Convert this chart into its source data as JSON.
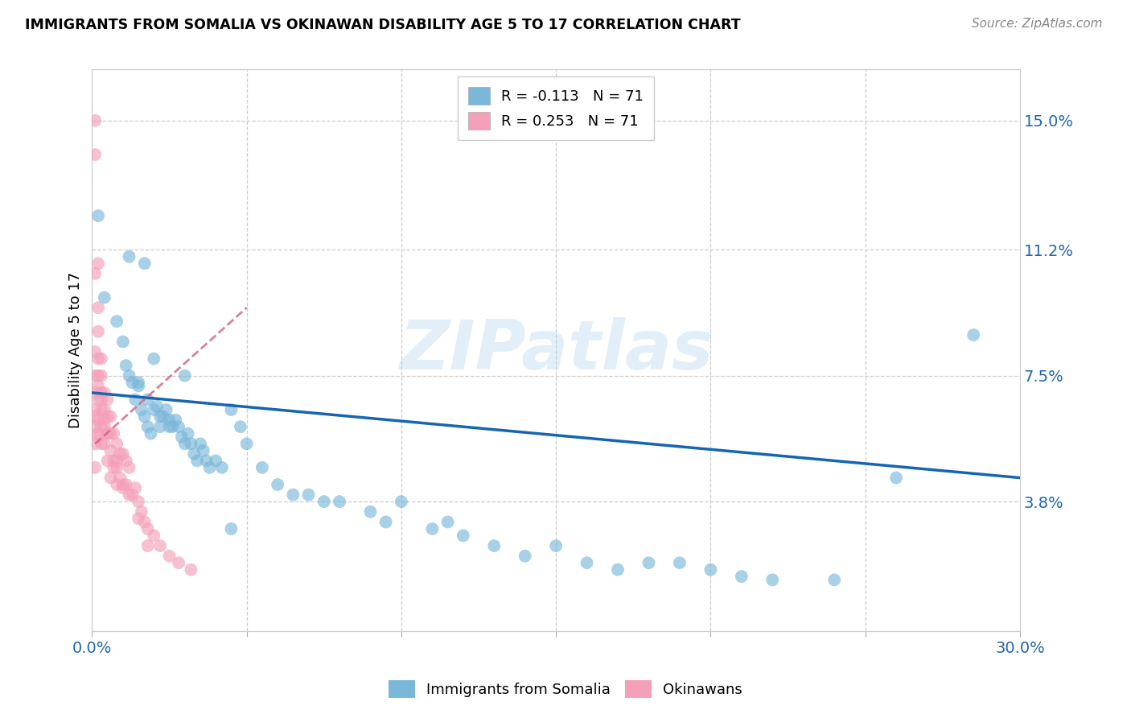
{
  "title": "IMMIGRANTS FROM SOMALIA VS OKINAWAN DISABILITY AGE 5 TO 17 CORRELATION CHART",
  "source": "Source: ZipAtlas.com",
  "ylabel": "Disability Age 5 to 17",
  "x_min": 0.0,
  "x_max": 0.3,
  "y_min": 0.0,
  "y_max": 0.165,
  "y_ticks_right": [
    0.038,
    0.075,
    0.112,
    0.15
  ],
  "y_tick_labels_right": [
    "3.8%",
    "7.5%",
    "11.2%",
    "15.0%"
  ],
  "blue_color": "#7ab8d9",
  "pink_color": "#f4a0b8",
  "trend_blue_color": "#1565b0",
  "trend_pink_color": "#d4607a",
  "legend_R1": "R = -0.113",
  "legend_N1": "N = 71",
  "legend_R2": "R = 0.253",
  "legend_N2": "N = 71",
  "label1": "Immigrants from Somalia",
  "label2": "Okinawans",
  "watermark": "ZIPatlas",
  "blue_trend_x": [
    0.0,
    0.3
  ],
  "blue_trend_y": [
    0.07,
    0.045
  ],
  "pink_trend_x": [
    0.001,
    0.05
  ],
  "pink_trend_y": [
    0.055,
    0.095
  ],
  "blue_scatter_x": [
    0.002,
    0.004,
    0.008,
    0.01,
    0.011,
    0.012,
    0.013,
    0.014,
    0.015,
    0.016,
    0.017,
    0.018,
    0.019,
    0.02,
    0.021,
    0.022,
    0.023,
    0.024,
    0.025,
    0.026,
    0.027,
    0.028,
    0.029,
    0.03,
    0.031,
    0.032,
    0.033,
    0.034,
    0.035,
    0.036,
    0.037,
    0.038,
    0.04,
    0.042,
    0.045,
    0.048,
    0.05,
    0.055,
    0.06,
    0.065,
    0.07,
    0.075,
    0.08,
    0.09,
    0.095,
    0.1,
    0.11,
    0.115,
    0.12,
    0.13,
    0.14,
    0.15,
    0.16,
    0.17,
    0.18,
    0.19,
    0.2,
    0.21,
    0.22,
    0.24,
    0.26,
    0.015,
    0.018,
    0.022,
    0.025,
    0.02,
    0.017,
    0.285,
    0.012,
    0.03,
    0.045
  ],
  "blue_scatter_y": [
    0.122,
    0.098,
    0.091,
    0.085,
    0.078,
    0.075,
    0.073,
    0.068,
    0.073,
    0.065,
    0.063,
    0.06,
    0.058,
    0.065,
    0.066,
    0.06,
    0.063,
    0.065,
    0.062,
    0.06,
    0.062,
    0.06,
    0.057,
    0.055,
    0.058,
    0.055,
    0.052,
    0.05,
    0.055,
    0.053,
    0.05,
    0.048,
    0.05,
    0.048,
    0.065,
    0.06,
    0.055,
    0.048,
    0.043,
    0.04,
    0.04,
    0.038,
    0.038,
    0.035,
    0.032,
    0.038,
    0.03,
    0.032,
    0.028,
    0.025,
    0.022,
    0.025,
    0.02,
    0.018,
    0.02,
    0.02,
    0.018,
    0.016,
    0.015,
    0.015,
    0.045,
    0.072,
    0.068,
    0.063,
    0.06,
    0.08,
    0.108,
    0.087,
    0.11,
    0.075,
    0.03
  ],
  "pink_scatter_x": [
    0.001,
    0.001,
    0.001,
    0.001,
    0.001,
    0.001,
    0.001,
    0.001,
    0.002,
    0.002,
    0.002,
    0.002,
    0.002,
    0.002,
    0.002,
    0.003,
    0.003,
    0.003,
    0.003,
    0.003,
    0.004,
    0.004,
    0.004,
    0.004,
    0.005,
    0.005,
    0.005,
    0.005,
    0.006,
    0.006,
    0.006,
    0.007,
    0.007,
    0.008,
    0.008,
    0.008,
    0.009,
    0.009,
    0.01,
    0.01,
    0.011,
    0.011,
    0.012,
    0.013,
    0.014,
    0.015,
    0.016,
    0.017,
    0.018,
    0.02,
    0.022,
    0.025,
    0.028,
    0.032,
    0.001,
    0.001,
    0.002,
    0.002,
    0.003,
    0.001,
    0.002,
    0.003,
    0.004,
    0.005,
    0.006,
    0.007,
    0.008,
    0.01,
    0.012,
    0.015,
    0.018
  ],
  "pink_scatter_y": [
    0.15,
    0.14,
    0.105,
    0.075,
    0.07,
    0.065,
    0.06,
    0.055,
    0.108,
    0.095,
    0.08,
    0.075,
    0.068,
    0.062,
    0.057,
    0.075,
    0.07,
    0.065,
    0.06,
    0.055,
    0.07,
    0.065,
    0.06,
    0.055,
    0.068,
    0.063,
    0.058,
    0.05,
    0.063,
    0.058,
    0.045,
    0.058,
    0.05,
    0.055,
    0.05,
    0.043,
    0.052,
    0.045,
    0.052,
    0.042,
    0.05,
    0.043,
    0.048,
    0.04,
    0.042,
    0.038,
    0.035,
    0.032,
    0.03,
    0.028,
    0.025,
    0.022,
    0.02,
    0.018,
    0.082,
    0.048,
    0.088,
    0.058,
    0.08,
    0.063,
    0.072,
    0.068,
    0.062,
    0.058,
    0.053,
    0.048,
    0.048,
    0.043,
    0.04,
    0.033,
    0.025
  ]
}
